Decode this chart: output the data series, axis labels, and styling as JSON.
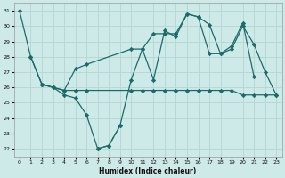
{
  "xlabel": "Humidex (Indice chaleur)",
  "bg_color": "#ceeae8",
  "grid_color": "#b8d8d5",
  "line_color": "#1a6b6a",
  "xlim": [
    -0.5,
    23.5
  ],
  "ylim": [
    21.5,
    31.5
  ],
  "yticks": [
    22,
    23,
    24,
    25,
    26,
    27,
    28,
    29,
    30,
    31
  ],
  "xticks": [
    0,
    1,
    2,
    3,
    4,
    5,
    6,
    7,
    8,
    9,
    10,
    11,
    12,
    13,
    14,
    15,
    16,
    17,
    18,
    19,
    20,
    21,
    22,
    23
  ],
  "series": [
    {
      "x": [
        0,
        1,
        2,
        3,
        4,
        5,
        6,
        10,
        11,
        12,
        13,
        14,
        15,
        16,
        17,
        18,
        19,
        20,
        21,
        22,
        23
      ],
      "y": [
        31,
        28,
        26.2,
        26.0,
        25.8,
        25.8,
        25.8,
        25.8,
        25.8,
        25.8,
        25.8,
        25.8,
        25.8,
        25.8,
        25.8,
        25.8,
        25.8,
        25.5,
        25.5,
        25.5,
        25.5
      ],
      "linestyle": "-",
      "marker": "D",
      "markersize": 2.2,
      "lw": 0.9
    },
    {
      "x": [
        1,
        2,
        3,
        4,
        5,
        6,
        10,
        11,
        12,
        13,
        14,
        15,
        16,
        17,
        18,
        19,
        20,
        21,
        22,
        23
      ],
      "y": [
        28,
        26.2,
        26.0,
        25.8,
        27.2,
        27.5,
        28.5,
        28.5,
        29.5,
        29.5,
        29.5,
        30.8,
        30.6,
        28.2,
        28.2,
        28.5,
        30.0,
        28.8,
        27.0,
        25.5
      ],
      "linestyle": "-",
      "marker": "D",
      "markersize": 2.2,
      "lw": 0.9
    },
    {
      "x": [
        2,
        3,
        4,
        5,
        6,
        7,
        8,
        9,
        10,
        11,
        12,
        13,
        14,
        15,
        16,
        17,
        18,
        19,
        20,
        21
      ],
      "y": [
        26.2,
        26.0,
        25.5,
        25.3,
        24.2,
        22.0,
        22.2,
        23.5,
        26.5,
        28.5,
        26.5,
        29.7,
        29.3,
        30.8,
        30.6,
        30.1,
        28.2,
        28.7,
        30.2,
        26.7
      ],
      "linestyle": "-",
      "marker": "D",
      "markersize": 2.2,
      "lw": 0.9
    },
    {
      "x": [
        7,
        8,
        9
      ],
      "y": [
        22.0,
        22.2,
        23.5
      ],
      "linestyle": "--",
      "marker": "D",
      "markersize": 2.2,
      "lw": 0.9
    }
  ]
}
